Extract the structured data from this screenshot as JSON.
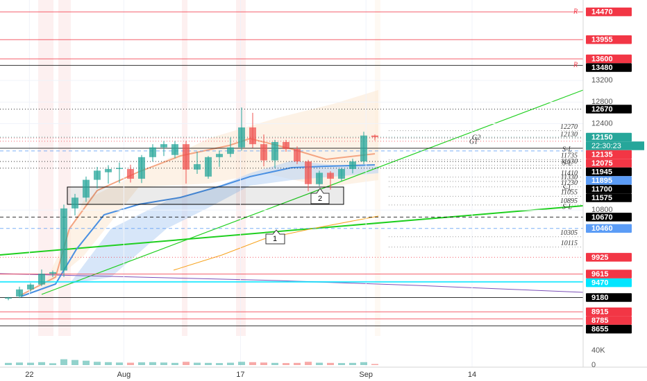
{
  "chart_data": {
    "type": "candlestick",
    "x": [
      0,
      1,
      2,
      3,
      4,
      5,
      6,
      7,
      8,
      9,
      10,
      11,
      12,
      13,
      14,
      15,
      16,
      17,
      18,
      19,
      20,
      21,
      22,
      23,
      24,
      25,
      26,
      27,
      28,
      29,
      30,
      31,
      32,
      33
    ],
    "open": [
      9160,
      9200,
      9330,
      9420,
      9620,
      9680,
      10830,
      11030,
      11360,
      11500,
      11560,
      11560,
      11380,
      11780,
      11960,
      11820,
      12020,
      11550,
      11420,
      11780,
      11840,
      11960,
      12330,
      12020,
      11720,
      12060,
      11930,
      11700,
      11280,
      11490,
      11380,
      11560,
      11700,
      12180
    ],
    "high": [
      9190,
      9380,
      9450,
      9700,
      9680,
      10900,
      11100,
      11420,
      11600,
      11630,
      11680,
      11640,
      11820,
      12020,
      12080,
      12080,
      12080,
      11880,
      11800,
      11900,
      12140,
      12700,
      12600,
      12200,
      12100,
      12100,
      11980,
      11730,
      11530,
      11520,
      11580,
      11750,
      12250,
      12200
    ],
    "low": [
      9130,
      9170,
      9290,
      9390,
      9560,
      9560,
      10700,
      10950,
      11200,
      11290,
      11300,
      11310,
      11300,
      11700,
      11800,
      11760,
      11290,
      11470,
      11380,
      11600,
      11780,
      11900,
      11950,
      11610,
      11580,
      11880,
      11650,
      11150,
      11240,
      11180,
      11340,
      11480,
      11650,
      12090
    ],
    "close": [
      9180,
      9330,
      9420,
      9620,
      9650,
      10830,
      11030,
      11360,
      11530,
      11560,
      11580,
      11380,
      11780,
      11960,
      12020,
      12020,
      11550,
      11650,
      11780,
      11840,
      11960,
      12330,
      12020,
      11720,
      12060,
      11930,
      11700,
      11280,
      11490,
      11380,
      11560,
      11700,
      12180,
      12150
    ],
    "xlim": [
      -0.75,
      51.75
    ],
    "xticks": [
      {
        "value": 1.9,
        "label": "22"
      },
      {
        "value": 10.4,
        "label": "Aug"
      },
      {
        "value": 20.9,
        "label": "17"
      },
      {
        "value": 32.2,
        "label": "Sep"
      },
      {
        "value": 41.75,
        "label": "14"
      }
    ],
    "ylim": [
      8468,
      14690
    ],
    "yticks": [
      10800,
      12400,
      12800,
      13200
    ],
    "up_color": "#26a69a",
    "down_color": "#ef5350",
    "levels": [
      {
        "value": 14470,
        "color": "#f23645",
        "style": "solid"
      },
      {
        "value": 13955,
        "color": "#f23645",
        "style": "solid"
      },
      {
        "value": 13600,
        "color": "#f23645",
        "style": "solid"
      },
      {
        "value": 13480,
        "color": "#000000",
        "style": "solid"
      },
      {
        "value": 12670,
        "color": "#000000",
        "style": "dotted"
      },
      {
        "value": 12150,
        "color": "#26a69a",
        "style": "dotted",
        "countdown": "22:30:23"
      },
      {
        "value": 12135,
        "color": "#f23645",
        "style": "dotted"
      },
      {
        "value": 12075,
        "color": "#f23645",
        "style": "dotted"
      },
      {
        "value": 11945,
        "color": "#000000",
        "style": "solid"
      },
      {
        "value": 11895,
        "color": "#5b9cf6",
        "style": "dashed"
      },
      {
        "value": 11700,
        "color": "#000000",
        "style": "dotted"
      },
      {
        "value": 11575,
        "color": "#000000",
        "style": "dotted"
      },
      {
        "value": 10670,
        "color": "#000000",
        "style": "dashed"
      },
      {
        "value": 10460,
        "color": "#5b9cf6",
        "style": "dashed"
      },
      {
        "value": 9925,
        "color": "#f23645",
        "style": "dotted"
      },
      {
        "value": 9615,
        "color": "#f23645",
        "style": "solid"
      },
      {
        "value": 9470,
        "color": "#00e5ff",
        "style": "solid"
      },
      {
        "value": 9180,
        "color": "#000000",
        "style": "solid"
      },
      {
        "value": 8915,
        "color": "#f23645",
        "style": "solid"
      },
      {
        "value": 8785,
        "color": "#f23645",
        "style": "solid"
      },
      {
        "value": 8655,
        "color": "#000000",
        "style": "solid"
      }
    ],
    "level_notes": [
      12270,
      12130,
      11735,
      11630,
      11410,
      11330,
      11230,
      11055,
      10895,
      10305,
      10115
    ],
    "volume": {
      "values": [
        6000,
        7000,
        6500,
        8000,
        5000,
        16000,
        14000,
        12000,
        9000,
        8000,
        7000,
        6500,
        7500,
        8000,
        7000,
        6000,
        9000,
        6500,
        6000,
        5500,
        6500,
        9000,
        8000,
        7000,
        6000,
        5500,
        6000,
        9000,
        6500,
        6000,
        5500,
        6000,
        8000,
        3000
      ],
      "ylim": [
        0,
        80000
      ],
      "yticks": [
        0,
        {
          "value": 40000,
          "label": "40K"
        }
      ]
    }
  },
  "annotations": {
    "marks": [
      "R",
      "R",
      "S-L",
      "S-L",
      "S-L",
      "S-L",
      "G2",
      "G1",
      "1",
      "2"
    ]
  }
}
